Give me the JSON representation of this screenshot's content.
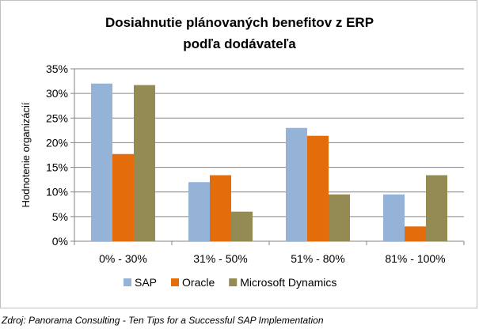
{
  "chart_data": {
    "type": "bar",
    "title_line1": "Dosiahnutie  plánovaných  benefitov z ERP",
    "title_line2": "podľa dodávateľa",
    "xlabel": "",
    "ylabel": "Hodnotenie organizácií",
    "ylim": [
      0,
      35
    ],
    "yticks": [
      "0%",
      "5%",
      "10%",
      "15%",
      "20%",
      "25%",
      "30%",
      "35%"
    ],
    "ytick_values": [
      0,
      5,
      10,
      15,
      20,
      25,
      30,
      35
    ],
    "grid": true,
    "legend_position": "bottom",
    "categories": [
      "0% - 30%",
      "31% - 50%",
      "51% - 80%",
      "81% - 100%"
    ],
    "series": [
      {
        "name": "SAP",
        "color": "#95b3d7",
        "values": [
          32,
          12,
          23,
          9.5
        ]
      },
      {
        "name": "Oracle",
        "color": "#e46c0a",
        "values": [
          17.7,
          13.4,
          21.4,
          3
        ]
      },
      {
        "name": "Microsoft Dynamics",
        "color": "#948a54",
        "values": [
          31.7,
          6,
          9.5,
          13.4
        ]
      }
    ]
  },
  "source": "Zdroj: Panorama Consulting - Ten Tips for a Successful SAP Implementation"
}
